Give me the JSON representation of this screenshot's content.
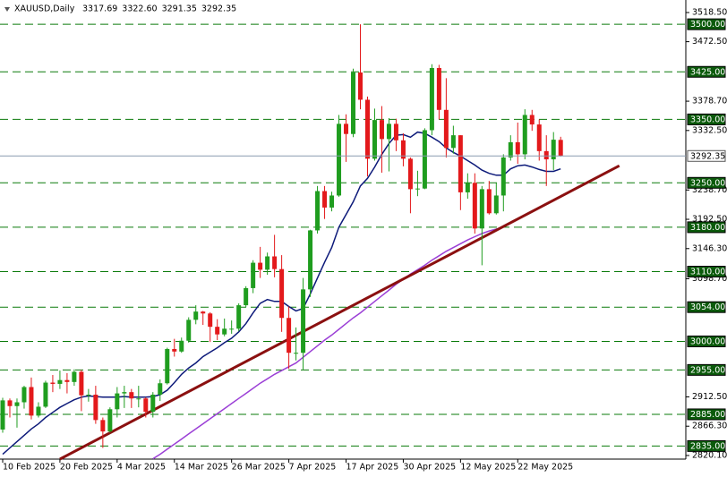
{
  "chart_data": {
    "type": "candlestick",
    "title": "XAUUSD,Daily",
    "ohlc_labels": [
      "3317.69",
      "3322.60",
      "3291.35",
      "3292.35"
    ],
    "categories": [
      "10 Feb 2025",
      null,
      null,
      null,
      null,
      null,
      null,
      null,
      "20 Feb 2025",
      null,
      null,
      null,
      null,
      null,
      null,
      null,
      "4 Mar 2025",
      null,
      null,
      null,
      null,
      null,
      null,
      null,
      "14 Mar 2025",
      null,
      null,
      null,
      null,
      null,
      null,
      null,
      "26 Mar 2025",
      null,
      null,
      null,
      null,
      null,
      null,
      null,
      "7 Apr 2025",
      null,
      null,
      null,
      null,
      null,
      null,
      null,
      "17 Apr 2025",
      null,
      null,
      null,
      null,
      null,
      null,
      null,
      "30 Apr 2025",
      null,
      null,
      null,
      null,
      null,
      null,
      null,
      "12 May 2025",
      null,
      null,
      null,
      null,
      null,
      null,
      null,
      "22 May 2025",
      null,
      null,
      null,
      null,
      null,
      null
    ],
    "open": [
      2861,
      2907,
      2898,
      2904,
      2928,
      2883,
      2897,
      2935,
      2933,
      2939,
      2936,
      2952,
      2915,
      2916,
      2876,
      2858,
      2893,
      2918,
      2920,
      2910,
      2910,
      2889,
      2916,
      2934,
      2988,
      2984,
      3001,
      3034,
      3047,
      3044,
      3023,
      3011,
      3020,
      3020,
      3057,
      3084,
      3124,
      3113,
      3134,
      3114,
      3037,
      2982,
      2982,
      3082,
      3175,
      3237,
      3211,
      3230,
      3343,
      3327,
      3424,
      3381,
      3288,
      3349,
      3319,
      3343,
      3317,
      3288,
      3240,
      3241,
      3333,
      3431,
      3365,
      3305,
      3325,
      3235,
      3250,
      3178,
      3240,
      3202,
      3230,
      3290,
      3314,
      3295,
      3357,
      3342,
      3300,
      3287,
      3317.69
    ],
    "high": [
      2911,
      2910,
      2910,
      2930,
      2943,
      2904,
      2938,
      2947,
      2954,
      2950,
      2956,
      2955,
      2925,
      2930,
      2880,
      2896,
      2928,
      2930,
      2925,
      2930,
      2912,
      2920,
      2940,
      2990,
      3004,
      3006,
      3038,
      3057,
      3048,
      3046,
      3035,
      3036,
      3033,
      3060,
      3087,
      3128,
      3149,
      3140,
      3168,
      3136,
      3055,
      3022,
      3100,
      3176,
      3245,
      3245,
      3236,
      3357,
      3358,
      3430,
      3500,
      3386,
      3367,
      3371,
      3352,
      3351,
      3328,
      3290,
      3269,
      3336,
      3437,
      3436,
      3415,
      3340,
      3325,
      3265,
      3265,
      3245,
      3253,
      3250,
      3295,
      3325,
      3345,
      3366,
      3365,
      3350,
      3325,
      3330,
      3322.6
    ],
    "low": [
      2856,
      2880,
      2864,
      2894,
      2877,
      2880,
      2895,
      2920,
      2925,
      2918,
      2930,
      2890,
      2905,
      2870,
      2832,
      2856,
      2880,
      2895,
      2895,
      2896,
      2880,
      2880,
      2906,
      2932,
      2976,
      2982,
      2998,
      3027,
      3026,
      2999,
      3002,
      3008,
      3012,
      3016,
      3054,
      3076,
      3100,
      3105,
      3101,
      3015,
      2957,
      2970,
      2955,
      3070,
      3170,
      3193,
      3205,
      3228,
      3283,
      3322,
      3366,
      3260,
      3285,
      3266,
      3268,
      3300,
      3276,
      3202,
      3229,
      3240,
      3325,
      3350,
      3290,
      3296,
      3207,
      3225,
      3170,
      3120,
      3200,
      3200,
      3205,
      3285,
      3280,
      3287,
      3332,
      3285,
      3245,
      3270,
      3291.35
    ],
    "close": [
      2907,
      2898,
      2904,
      2928,
      2883,
      2897,
      2935,
      2933,
      2939,
      2936,
      2952,
      2915,
      2916,
      2876,
      2858,
      2893,
      2918,
      2920,
      2910,
      2910,
      2889,
      2916,
      2934,
      2988,
      2984,
      3001,
      3034,
      3047,
      3044,
      3023,
      3011,
      3020,
      3020,
      3057,
      3084,
      3124,
      3113,
      3134,
      3114,
      3037,
      2982,
      2982,
      3082,
      3175,
      3237,
      3211,
      3230,
      3343,
      3327,
      3424,
      3381,
      3288,
      3349,
      3319,
      3343,
      3317,
      3288,
      3240,
      3241,
      3333,
      3431,
      3365,
      3305,
      3325,
      3235,
      3250,
      3178,
      3240,
      3202,
      3230,
      3290,
      3314,
      3295,
      3357,
      3342,
      3300,
      3287,
      3318,
      3292.35
    ],
    "up_color": "#1f9d1f",
    "down_color": "#e3191b",
    "lines": [
      {
        "color": "#0d1a7a",
        "values": [
          2822,
          2832,
          2842,
          2852,
          2862,
          2870,
          2880,
          2888,
          2896,
          2902,
          2908,
          2912,
          2914,
          2913,
          2912,
          2912,
          2912,
          2913,
          2912,
          2912,
          2912,
          2913,
          2916,
          2923,
          2935,
          2948,
          2958,
          2966,
          2976,
          2983,
          2990,
          2998,
          3005,
          3015,
          3028,
          3045,
          3060,
          3066,
          3063,
          3063,
          3055,
          3048,
          3052,
          3075,
          3100,
          3125,
          3148,
          3180,
          3200,
          3220,
          3245,
          3257,
          3275,
          3295,
          3312,
          3325,
          3326,
          3322,
          3330,
          3328,
          3322,
          3315,
          3305,
          3298,
          3292,
          3285,
          3278,
          3270,
          3265,
          3262,
          3262,
          3272,
          3277,
          3278,
          3275,
          3271,
          3268,
          3268,
          3272
        ]
      },
      {
        "color": "#9b3fd6",
        "values": [
          null,
          null,
          null,
          null,
          null,
          null,
          null,
          null,
          null,
          null,
          null,
          null,
          null,
          null,
          null,
          null,
          null,
          null,
          null,
          null,
          null,
          2815,
          2822,
          2830,
          2838,
          2846,
          2854,
          2862,
          2870,
          2878,
          2886,
          2894,
          2902,
          2910,
          2918,
          2926,
          2934,
          2941,
          2948,
          2954,
          2960,
          2966,
          2975,
          2984,
          2993,
          3002,
          3010,
          3019,
          3028,
          3037,
          3045,
          3054,
          3063,
          3072,
          3081,
          3090,
          3098,
          3106,
          3113,
          3120,
          3128,
          3135,
          3142,
          3148,
          3154,
          3160,
          3165,
          3170,
          3174,
          3177,
          3180,
          null,
          null,
          null,
          null,
          null,
          null,
          null,
          null
        ]
      }
    ],
    "trendline": {
      "color": "#8b1010",
      "x": [
        8,
        86.2
      ],
      "y": [
        2814.4,
        3277
      ]
    },
    "levels_color": "#0a7a0a",
    "levels": [
      {
        "value": 3500,
        "label": "3500.00"
      },
      {
        "value": 3425,
        "label": "3425.00"
      },
      {
        "value": 3350,
        "label": "3350.00"
      },
      {
        "value": 3250,
        "label": "3250.00"
      },
      {
        "value": 3180,
        "label": "3180.00"
      },
      {
        "value": 3110,
        "label": "3110.00"
      },
      {
        "value": 3054,
        "label": "3054.00"
      },
      {
        "value": 3000,
        "label": "3000.00"
      },
      {
        "value": 2955,
        "label": "2955.00"
      },
      {
        "value": 2885,
        "label": "2885.00"
      },
      {
        "value": 2835,
        "label": "2835.00"
      }
    ],
    "ylim": [
      2814.4,
      3538.25
    ],
    "yticks": [
      {
        "value": 3518.5,
        "label": "3518.50"
      },
      {
        "value": 3472.5,
        "label": "3472.50"
      },
      {
        "value": 3378.7,
        "label": "3378.70"
      },
      {
        "value": 3332.5,
        "label": "3332.50"
      },
      {
        "value": 3238.7,
        "label": "3238.70"
      },
      {
        "value": 3192.5,
        "label": "3192.50"
      },
      {
        "value": 3146.3,
        "label": "3146.30"
      },
      {
        "value": 3098.7,
        "label": "3098.70"
      },
      {
        "value": 2912.5,
        "label": "2912.50"
      },
      {
        "value": 2866.3,
        "label": "2866.30"
      },
      {
        "value": 2820.1,
        "label": "2820.10"
      }
    ]
  }
}
